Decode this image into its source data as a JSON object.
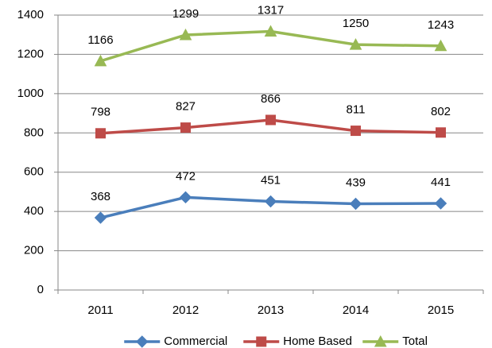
{
  "chart_data": {
    "type": "line",
    "categories": [
      "2011",
      "2012",
      "2013",
      "2014",
      "2015"
    ],
    "series": [
      {
        "name": "Commercial",
        "color": "#4a7ebb",
        "marker": "diamond",
        "values": [
          368,
          472,
          451,
          439,
          441
        ]
      },
      {
        "name": "Home Based",
        "color": "#be4b48",
        "marker": "square",
        "values": [
          798,
          827,
          866,
          811,
          802
        ]
      },
      {
        "name": "Total",
        "color": "#98b954",
        "marker": "triangle",
        "values": [
          1166,
          1299,
          1317,
          1250,
          1243
        ]
      }
    ],
    "ylim": [
      0,
      1400
    ],
    "yticks": [
      0,
      200,
      400,
      600,
      800,
      1000,
      1200,
      1400
    ],
    "grid": true,
    "legend": "bottom",
    "data_labels": true
  }
}
